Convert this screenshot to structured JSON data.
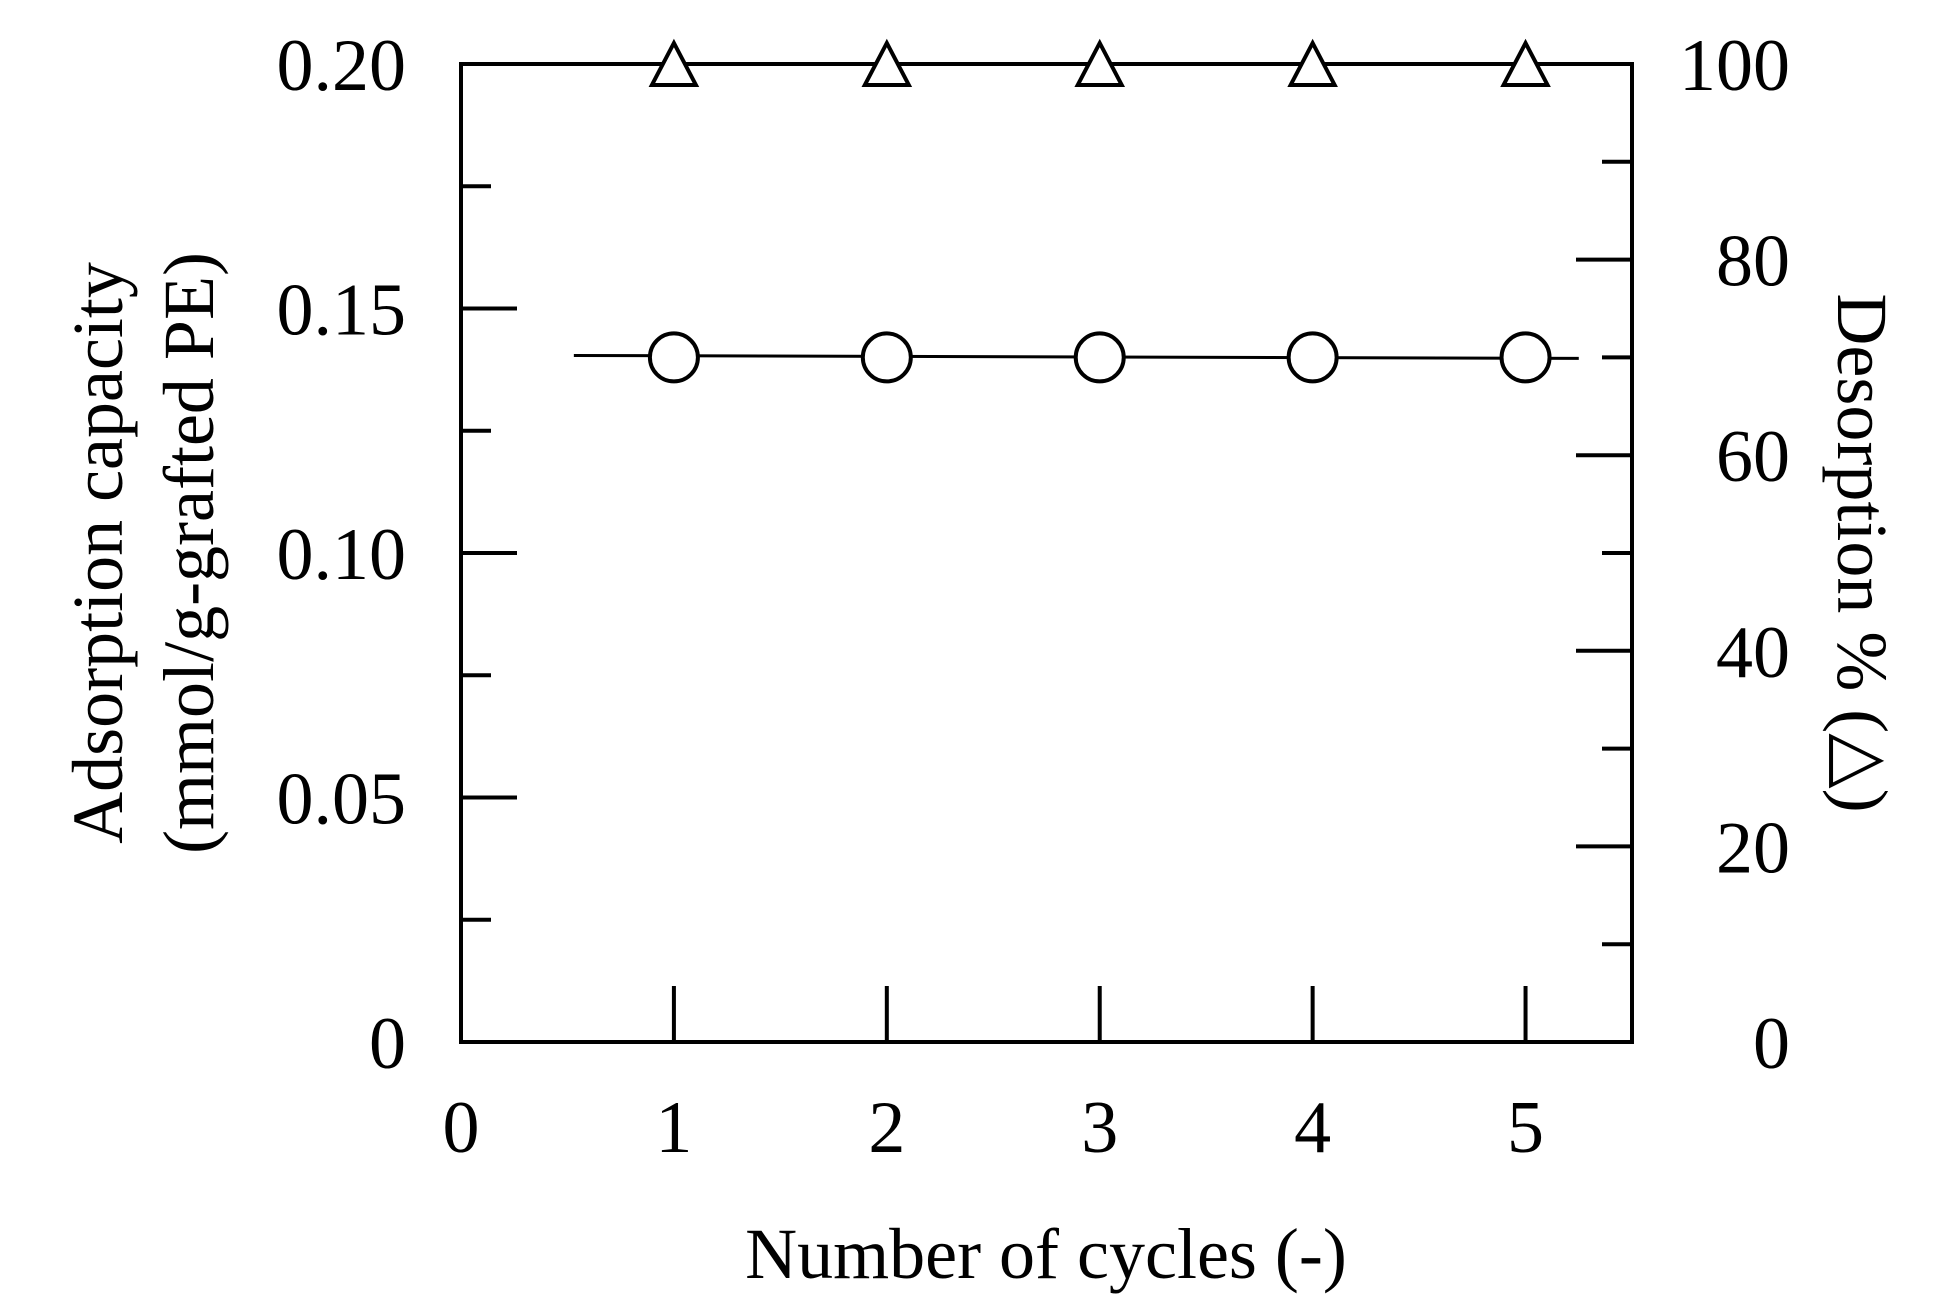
{
  "chart_data": {
    "type": "scatter",
    "title": "",
    "xlabel": "Number of cycles (-)",
    "ylabel_lines": [
      "Adsorption capacity",
      "(mmol/g-grafted PE)"
    ],
    "y2label": "Desorption % (△)",
    "xlim": [
      0,
      5.5
    ],
    "ylim": [
      0,
      0.2
    ],
    "y2lim": [
      0,
      100
    ],
    "x_ticks": [
      "0",
      "1",
      "2",
      "3",
      "4",
      "5"
    ],
    "y_ticks": [
      "0",
      "0.05",
      "0.10",
      "0.15",
      "0.20"
    ],
    "y2_ticks": [
      "0",
      "20",
      "40",
      "60",
      "80",
      "100"
    ],
    "grid": false,
    "legend": "none",
    "series": [
      {
        "axis": "left",
        "marker": "circle",
        "x": [
          1,
          2,
          3,
          4,
          5
        ],
        "y": [
          0.14,
          0.14,
          0.14,
          0.14,
          0.14
        ],
        "trend_line": {
          "x": [
            0.53,
            5.25
          ],
          "y": [
            0.1404,
            0.1398
          ]
        }
      },
      {
        "axis": "right",
        "marker": "triangle",
        "x": [
          1,
          2,
          3,
          4,
          5
        ],
        "y": [
          100,
          100,
          100,
          100,
          100
        ]
      }
    ]
  }
}
